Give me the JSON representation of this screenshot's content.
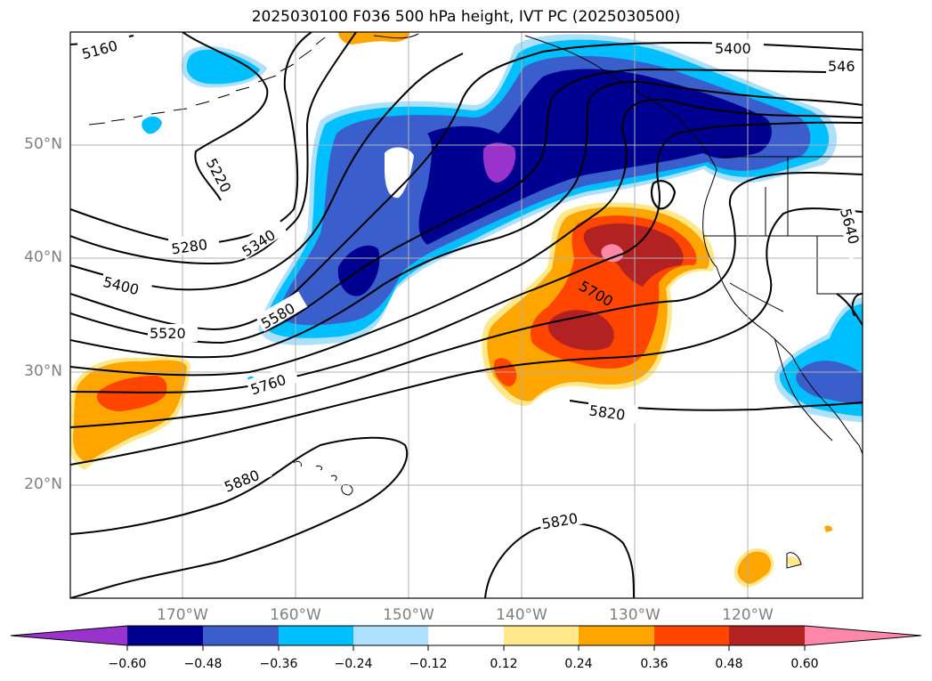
{
  "title": "2025030100 F036 500 hPa height, IVT PC (2025030500)",
  "lat_ticks": [
    "50°N",
    "40°N",
    "30°N",
    "20°N"
  ],
  "lon_ticks": [
    "170°W",
    "160°W",
    "150°W",
    "140°W",
    "130°W",
    "120°W"
  ],
  "contour_labels": [
    "5160",
    "5220",
    "5280",
    "5340",
    "5400",
    "5400",
    "546",
    "5520",
    "5580",
    "5640",
    "5700",
    "5760",
    "5820",
    "5820",
    "5880"
  ],
  "colorbar": {
    "tick_labels": [
      "−0.60",
      "−0.48",
      "−0.36",
      "−0.24",
      "−0.12",
      "0.12",
      "0.24",
      "0.36",
      "0.48",
      "0.60"
    ],
    "levels": [
      -0.6,
      -0.48,
      -0.36,
      -0.24,
      -0.12,
      0.12,
      0.24,
      0.36,
      0.48,
      0.6
    ],
    "colors": [
      "#9933cc",
      "#000090",
      "#3a5ecc",
      "#00bfff",
      "#ade0fa",
      "#ffffff",
      "#ffe88a",
      "#ffa500",
      "#ff4500",
      "#b22222",
      "#ff88aa"
    ]
  }
}
